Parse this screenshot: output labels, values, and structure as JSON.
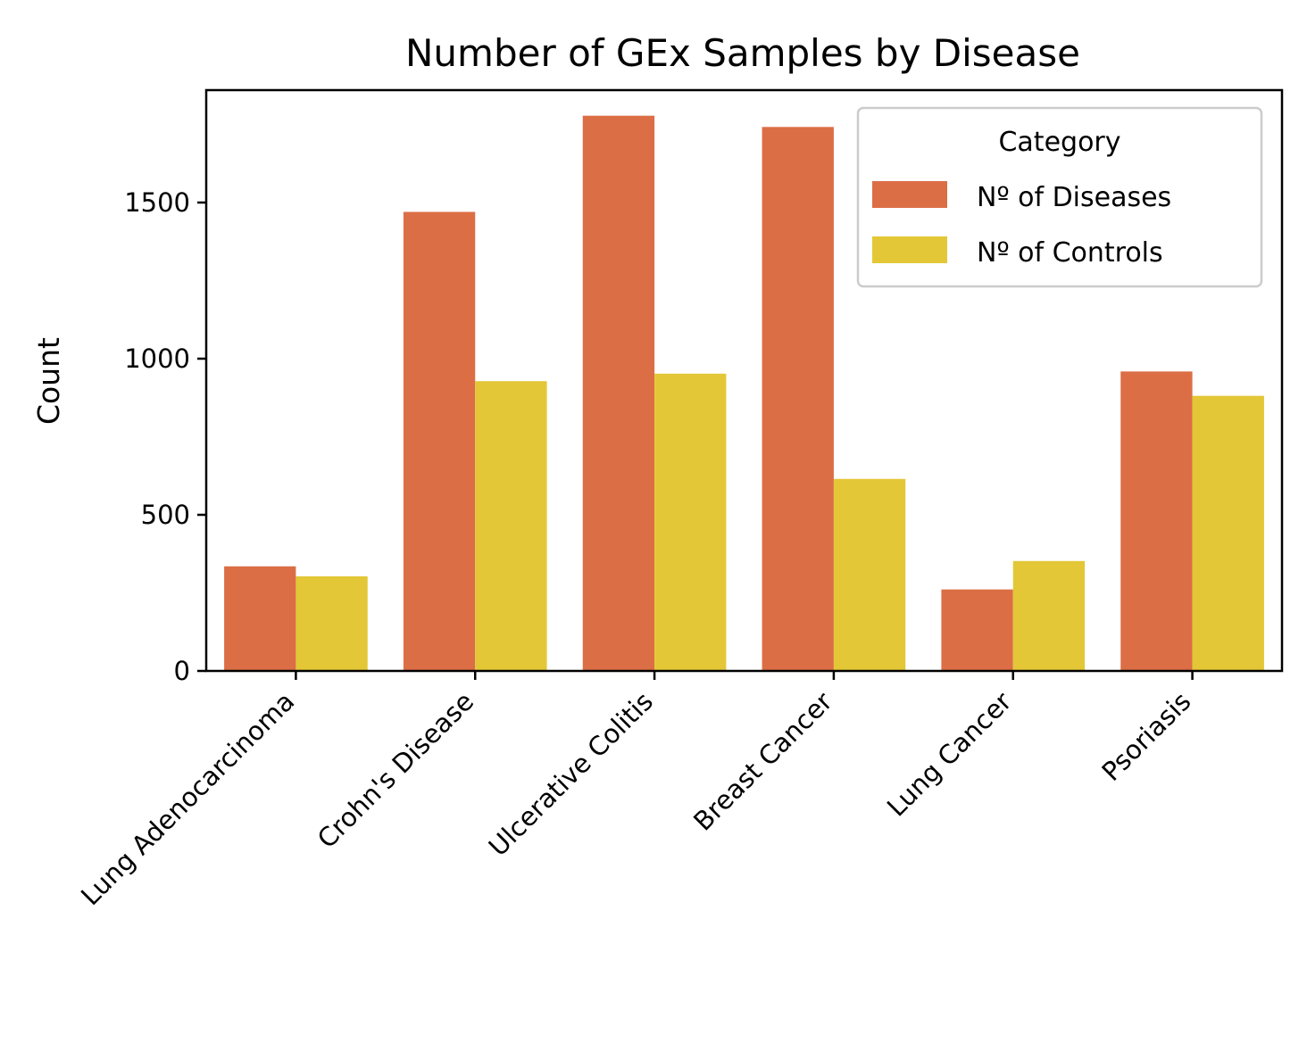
{
  "chart_data": {
    "type": "bar",
    "title": "Number of GEx Samples by Disease",
    "xlabel": "",
    "ylabel": "Count",
    "ylim": [
      0,
      1860
    ],
    "yticks": [
      0,
      500,
      1000,
      1500
    ],
    "grid": false,
    "categories": [
      "Lung Adenocarcinoma",
      "Crohn's Disease",
      "Ulcerative Colitis",
      "Breast Cancer",
      "Lung Cancer",
      "Psoriasis"
    ],
    "series": [
      {
        "name": "Nº of Diseases",
        "color": "#dc6e45",
        "values": [
          335,
          1470,
          1778,
          1742,
          261,
          959
        ]
      },
      {
        "name": "Nº of Controls",
        "color": "#e3c737",
        "values": [
          303,
          928,
          952,
          615,
          352,
          881
        ]
      }
    ],
    "legend": {
      "title": "Category",
      "position": "top-right"
    }
  }
}
